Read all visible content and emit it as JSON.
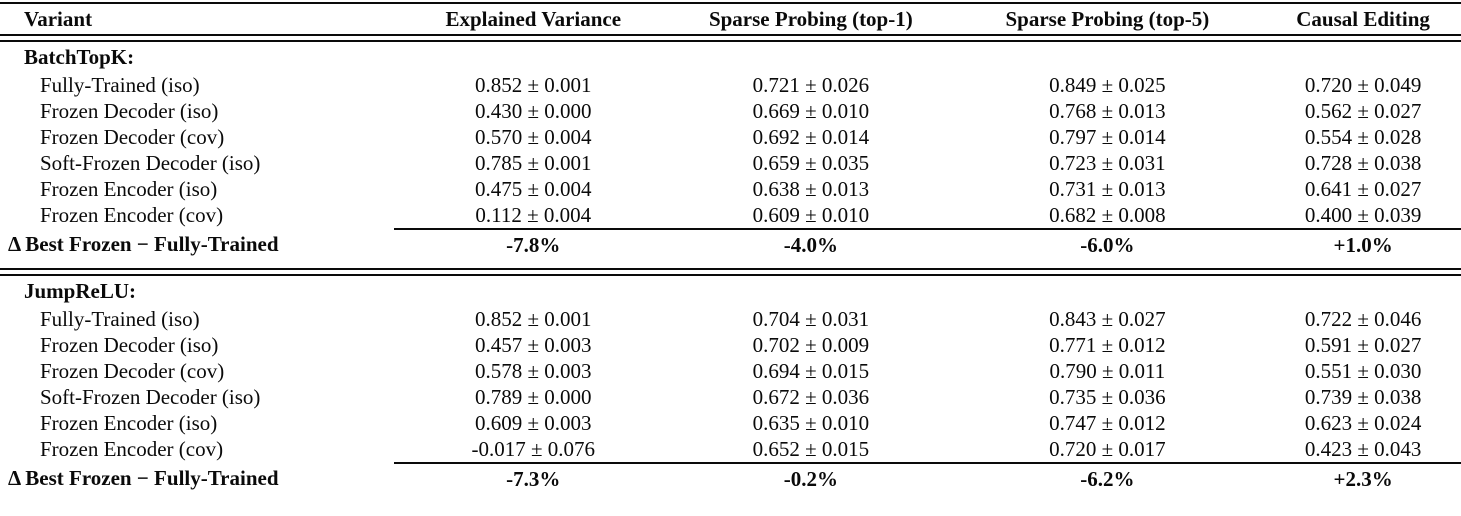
{
  "table": {
    "columns": [
      "Variant",
      "Explained Variance",
      "Sparse Probing (top-1)",
      "Sparse Probing (top-5)",
      "Causal Editing"
    ],
    "sections": [
      {
        "label": "BatchTopK:",
        "rows": [
          {
            "variant": "Fully-Trained (iso)",
            "values": [
              "0.852 ± 0.001",
              "0.721 ± 0.026",
              "0.849 ± 0.025",
              "0.720 ± 0.049"
            ]
          },
          {
            "variant": "Frozen Decoder (iso)",
            "values": [
              "0.430 ± 0.000",
              "0.669 ± 0.010",
              "0.768 ± 0.013",
              "0.562 ± 0.027"
            ]
          },
          {
            "variant": "Frozen Decoder (cov)",
            "values": [
              "0.570 ± 0.004",
              "0.692 ± 0.014",
              "0.797 ± 0.014",
              "0.554 ± 0.028"
            ]
          },
          {
            "variant": "Soft-Frozen Decoder (iso)",
            "values": [
              "0.785 ± 0.001",
              "0.659 ± 0.035",
              "0.723 ± 0.031",
              "0.728 ± 0.038"
            ]
          },
          {
            "variant": "Frozen Encoder (iso)",
            "values": [
              "0.475 ± 0.004",
              "0.638 ± 0.013",
              "0.731 ± 0.013",
              "0.641 ± 0.027"
            ]
          },
          {
            "variant": "Frozen Encoder (cov)",
            "values": [
              "0.112 ± 0.004",
              "0.609 ± 0.010",
              "0.682 ± 0.008",
              "0.400 ± 0.039"
            ]
          }
        ],
        "delta": {
          "label": "Δ Best Frozen − Fully-Trained",
          "values": [
            "-7.8%",
            "-4.0%",
            "-6.0%",
            "+1.0%"
          ]
        }
      },
      {
        "label": "JumpReLU:",
        "rows": [
          {
            "variant": "Fully-Trained (iso)",
            "values": [
              "0.852 ± 0.001",
              "0.704 ± 0.031",
              "0.843 ± 0.027",
              "0.722 ± 0.046"
            ]
          },
          {
            "variant": "Frozen Decoder (iso)",
            "values": [
              "0.457 ± 0.003",
              "0.702 ± 0.009",
              "0.771 ± 0.012",
              "0.591 ± 0.027"
            ]
          },
          {
            "variant": "Frozen Decoder (cov)",
            "values": [
              "0.578 ± 0.003",
              "0.694 ± 0.015",
              "0.790 ± 0.011",
              "0.551 ± 0.030"
            ]
          },
          {
            "variant": "Soft-Frozen Decoder (iso)",
            "values": [
              "0.789 ± 0.000",
              "0.672 ± 0.036",
              "0.735 ± 0.036",
              "0.739 ± 0.038"
            ]
          },
          {
            "variant": "Frozen Encoder (iso)",
            "values": [
              "0.609 ± 0.003",
              "0.635 ± 0.010",
              "0.747 ± 0.012",
              "0.623 ± 0.024"
            ]
          },
          {
            "variant": "Frozen Encoder (cov)",
            "values": [
              "-0.017 ± 0.076",
              "0.652 ± 0.015",
              "0.720 ± 0.017",
              "0.423 ± 0.043"
            ]
          }
        ],
        "delta": {
          "label": "Δ Best Frozen − Fully-Trained",
          "values": [
            "-7.3%",
            "-0.2%",
            "-6.2%",
            "+2.3%"
          ]
        }
      }
    ]
  }
}
